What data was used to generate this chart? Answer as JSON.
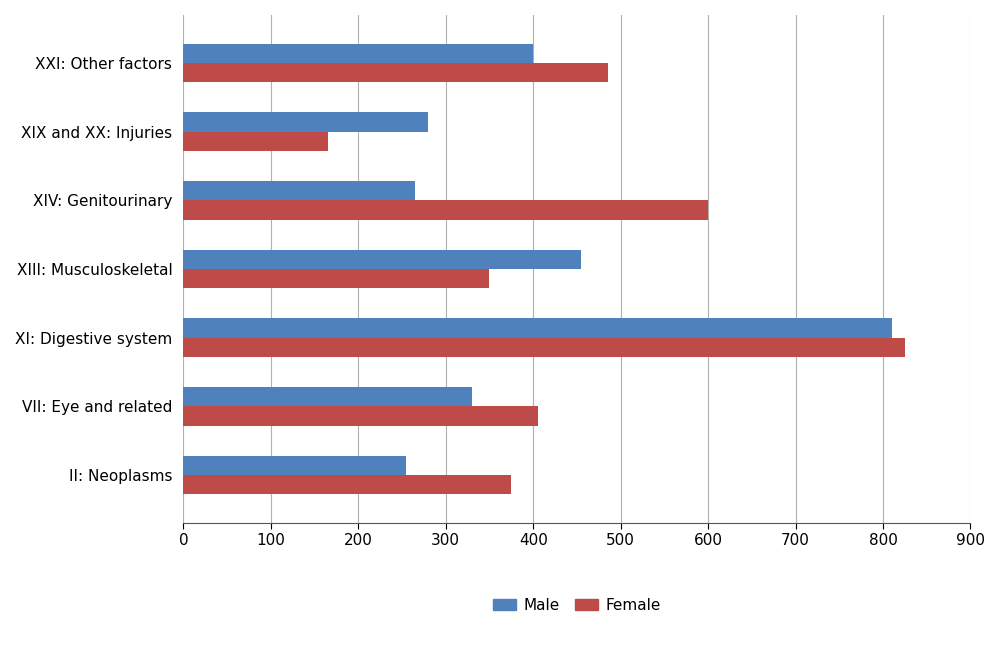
{
  "categories": [
    "II: Neoplasms",
    "VII: Eye and related",
    "XI: Digestive system",
    "XIII: Musculoskeletal",
    "XIV: Genitourinary",
    "XIX and XX: Injuries",
    "XXI: Other factors"
  ],
  "male_values": [
    255,
    330,
    810,
    455,
    265,
    280,
    400
  ],
  "female_values": [
    375,
    405,
    825,
    350,
    600,
    165,
    485
  ],
  "male_color": "#4f81bd",
  "female_color": "#be4b48",
  "xlim": [
    0,
    900
  ],
  "xticks": [
    0,
    100,
    200,
    300,
    400,
    500,
    600,
    700,
    800,
    900
  ],
  "bar_height": 0.28,
  "legend_labels": [
    "Male",
    "Female"
  ],
  "background_color": "#ffffff",
  "grid_color": "#b0b0b0",
  "tick_fontsize": 11,
  "label_fontsize": 11
}
